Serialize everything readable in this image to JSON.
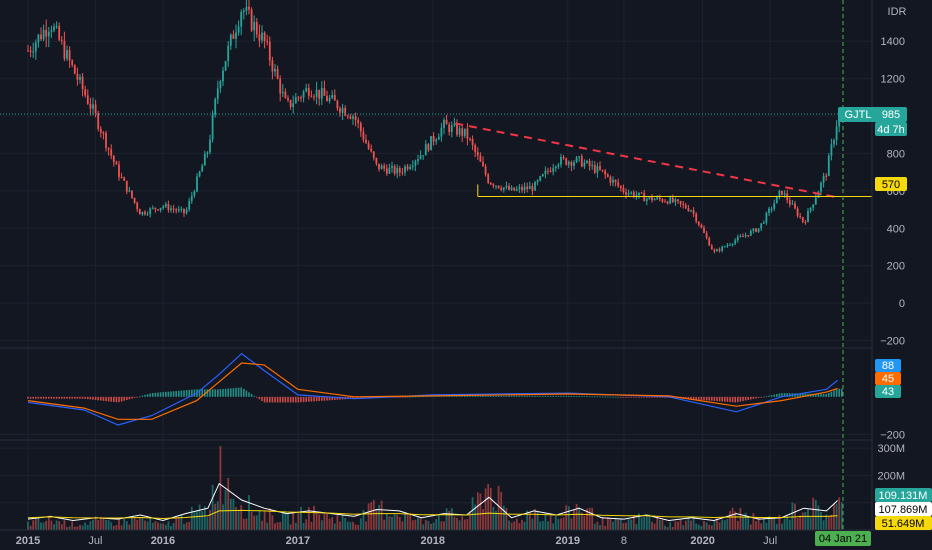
{
  "symbol": "GJTL",
  "currency": "IDR",
  "countdown": "4d 7h",
  "crosshair_date": "04 Jan '21",
  "colors": {
    "background": "#131722",
    "grid": "#1e222d",
    "up": "#26a69a",
    "down": "#ef5350",
    "macd_line": "#2962ff",
    "signal_line": "#ff6d00",
    "trendline": "#f23645",
    "support": "#f5d90a",
    "crosshair": "#4caf50",
    "volume_ma1": "#ffffff",
    "volume_ma2": "#f5d90a"
  },
  "chart_data": [
    {
      "type": "candlestick",
      "title": "GJTL",
      "ylabel": "IDR",
      "x_tick_labels": [
        "2015",
        "Jul",
        "2016",
        "2017",
        "2018",
        "2019",
        "8",
        "2020",
        "Jul"
      ],
      "y_tick_labels": [
        "1400",
        "1200",
        "1000",
        "800",
        "600",
        "400",
        "200",
        "0",
        "−200"
      ],
      "ylim": [
        -240,
        1620
      ],
      "grid": true,
      "last_price": 985,
      "x_end_label": "04 Jan 21",
      "series": [
        {
          "name": "GJTL",
          "x": [
            "2015-01",
            "2015-03",
            "2015-05",
            "2015-07",
            "2015-09",
            "2015-11",
            "2016-01",
            "2016-03",
            "2016-05",
            "2016-06",
            "2016-08",
            "2016-10",
            "2016-12",
            "2017-02",
            "2017-04",
            "2017-06",
            "2017-08",
            "2017-10",
            "2017-12",
            "2018-02",
            "2018-04",
            "2018-06",
            "2018-08",
            "2018-10",
            "2018-12",
            "2019-02",
            "2019-04",
            "2019-06",
            "2019-08",
            "2019-10",
            "2019-12",
            "2020-02",
            "2020-04",
            "2020-06",
            "2020-08",
            "2020-10",
            "2020-12",
            "2021-01"
          ],
          "close": [
            1350,
            1500,
            1250,
            1000,
            700,
            480,
            520,
            480,
            820,
            1200,
            1580,
            1400,
            1050,
            1150,
            1080,
            1000,
            730,
            700,
            800,
            950,
            900,
            650,
            600,
            620,
            760,
            760,
            700,
            600,
            560,
            550,
            500,
            270,
            340,
            400,
            600,
            430,
            700,
            985
          ]
        }
      ],
      "annotations": [
        {
          "type": "trendline",
          "from": [
            "2018-03",
            960
          ],
          "to": [
            "2021-01",
            565
          ]
        },
        {
          "type": "support_line",
          "value": 570,
          "from": "2018-05",
          "label": "570"
        }
      ]
    },
    {
      "type": "line",
      "title": "MACD",
      "y_tick_labels": [
        "−200"
      ],
      "ylim": [
        -230,
        260
      ],
      "tags": {
        "macd": "88",
        "signal": "45",
        "histogram": "43"
      },
      "series": [
        {
          "name": "MACD",
          "x": [
            "2015-01",
            "2015-06",
            "2015-09",
            "2015-12",
            "2016-04",
            "2016-06",
            "2016-08",
            "2016-10",
            "2017-01",
            "2017-06",
            "2018-01",
            "2019-01",
            "2019-10",
            "2020-04",
            "2020-08",
            "2020-12",
            "2021-01"
          ],
          "values": [
            -30,
            -70,
            -150,
            -100,
            20,
            120,
            230,
            140,
            10,
            -10,
            10,
            20,
            0,
            -80,
            0,
            40,
            88
          ]
        },
        {
          "name": "Signal",
          "x": [
            "2015-01",
            "2015-06",
            "2015-09",
            "2015-12",
            "2016-04",
            "2016-06",
            "2016-08",
            "2016-10",
            "2017-01",
            "2017-06",
            "2018-01",
            "2019-01",
            "2019-10",
            "2020-04",
            "2020-08",
            "2020-12",
            "2021-01"
          ],
          "values": [
            -20,
            -60,
            -120,
            -120,
            -20,
            80,
            180,
            170,
            40,
            0,
            5,
            15,
            5,
            -50,
            -20,
            25,
            45
          ]
        }
      ]
    },
    {
      "type": "bar",
      "title": "Volume",
      "y_tick_labels": [
        "300M",
        "200M",
        "100M"
      ],
      "ylim": [
        0,
        330
      ],
      "tags": {
        "volume": "109.131M",
        "ma1": "107.869M",
        "ma2": "51.649M"
      },
      "series": [
        {
          "name": "Volume",
          "values_millions": [
            30,
            45,
            25,
            40,
            35,
            50,
            20,
            60,
            90,
            280,
            120,
            70,
            50,
            80,
            60,
            40,
            100,
            75,
            40,
            70,
            55,
            210,
            30,
            90,
            45,
            110,
            40,
            35,
            60,
            25,
            45,
            30,
            80,
            40,
            50,
            120,
            70,
            109
          ]
        },
        {
          "name": "Volume MA",
          "values_millions": [
            40,
            50,
            35,
            45,
            40,
            55,
            35,
            60,
            80,
            170,
            110,
            80,
            60,
            70,
            60,
            50,
            75,
            70,
            45,
            60,
            55,
            120,
            45,
            70,
            55,
            80,
            45,
            40,
            55,
            35,
            45,
            35,
            60,
            40,
            45,
            80,
            70,
            108
          ]
        },
        {
          "name": "Volume MA long",
          "values_millions": [
            45,
            48,
            45,
            44,
            44,
            46,
            42,
            46,
            52,
            70,
            72,
            70,
            66,
            64,
            62,
            58,
            60,
            60,
            56,
            56,
            55,
            62,
            58,
            58,
            55,
            58,
            54,
            52,
            52,
            48,
            48,
            46,
            48,
            46,
            46,
            50,
            50,
            52
          ]
        }
      ]
    }
  ]
}
